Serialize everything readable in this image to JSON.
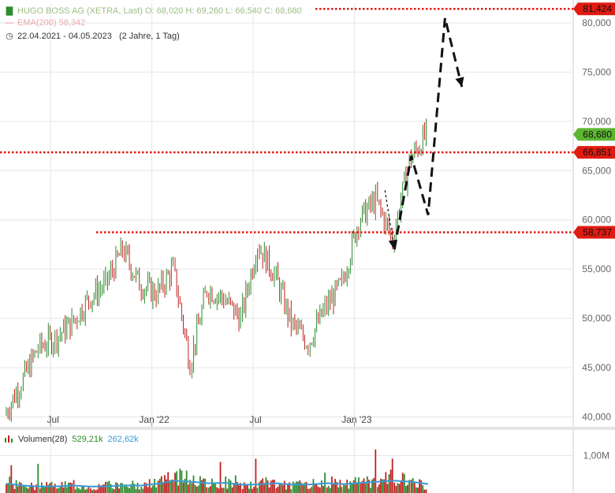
{
  "legend": {
    "instrument": "HUGO BOSS AG (XETRA, Last)  O: 68,020  H: 69,260  L: 66,540  C: 68,680",
    "ema": "EMA(200)  58,342",
    "range": "22.04.2021 - 04.05.2023",
    "range_note": "(2 Jahre, 1 Tag)"
  },
  "volume_legend": {
    "label": "Volumen(28)",
    "value1": "529,21k",
    "value2": "262,62k"
  },
  "colors": {
    "up": "#2e8b2e",
    "down": "#c0211f",
    "level_line": "#e01b12",
    "last_badge": "#5cb531",
    "vol_avg": "#3a9ad6",
    "grid": "#e6e6e6"
  },
  "chart_data": {
    "type": "line",
    "xlabel": "",
    "ylabel": "",
    "x_ticks": [
      "Jul",
      "Jan '22",
      "Jul",
      "Jan '23"
    ],
    "y_ticks": [
      "80,000",
      "75,000",
      "70,000",
      "65,000",
      "60,000",
      "55,000",
      "50,000",
      "45,000",
      "40,000"
    ],
    "y_tick_values": [
      80,
      75,
      70,
      65,
      60,
      55,
      50,
      45,
      40
    ],
    "ylim": [
      39,
      82
    ],
    "x": [
      "2021-04",
      "2021-05",
      "2021-06",
      "2021-07",
      "2021-08",
      "2021-09",
      "2021-10",
      "2021-11",
      "2021-12",
      "2022-01",
      "2022-02",
      "2022-03",
      "2022-04",
      "2022-05",
      "2022-06",
      "2022-07",
      "2022-08",
      "2022-09",
      "2022-10",
      "2022-11",
      "2022-12",
      "2023-01",
      "2023-02",
      "2023-03",
      "2023-04",
      "2023-05"
    ],
    "series": [
      {
        "values": [
          40.2,
          43.5,
          47.0,
          48.0,
          49.5,
          52.0,
          53.5,
          57.0,
          53.5,
          52.5,
          55.0,
          45.5,
          53.0,
          52.0,
          50.0,
          57.5,
          54.5,
          49.5,
          47.5,
          51.0,
          53.5,
          60.0,
          62.0,
          58.0,
          66.0,
          68.68
        ]
      }
    ],
    "horizontal_levels": [
      {
        "label": "81,424",
        "value": 81.424
      },
      {
        "label": "66,851",
        "value": 66.851
      },
      {
        "label": "58,737",
        "value": 58.737
      }
    ],
    "last_price": {
      "label": "68,680",
      "value": 68.68
    },
    "projection_path": [
      {
        "x": "2023-03",
        "y": 57.0
      },
      {
        "x": "2023-04",
        "y": 66.5
      },
      {
        "x": "2023-05",
        "y": 60.5
      },
      {
        "x": "2023-06",
        "y": 80.5
      },
      {
        "x": "2023-07",
        "y": 73.5
      }
    ],
    "volume": {
      "ytick": "1,00M",
      "ytick_value": 1.0,
      "values": [
        0.3,
        0.2,
        0.18,
        0.2,
        0.22,
        0.15,
        0.2,
        0.25,
        0.2,
        0.3,
        0.45,
        0.35,
        0.25,
        0.3,
        0.18,
        0.25,
        0.3,
        0.2,
        0.25,
        0.3,
        0.22,
        0.3,
        0.35,
        0.4,
        0.3,
        0.2
      ],
      "avg": [
        0.25,
        0.2,
        0.17,
        0.18,
        0.2,
        0.17,
        0.18,
        0.2,
        0.2,
        0.25,
        0.33,
        0.3,
        0.26,
        0.27,
        0.22,
        0.23,
        0.26,
        0.22,
        0.23,
        0.26,
        0.24,
        0.27,
        0.3,
        0.33,
        0.3,
        0.24
      ]
    }
  }
}
